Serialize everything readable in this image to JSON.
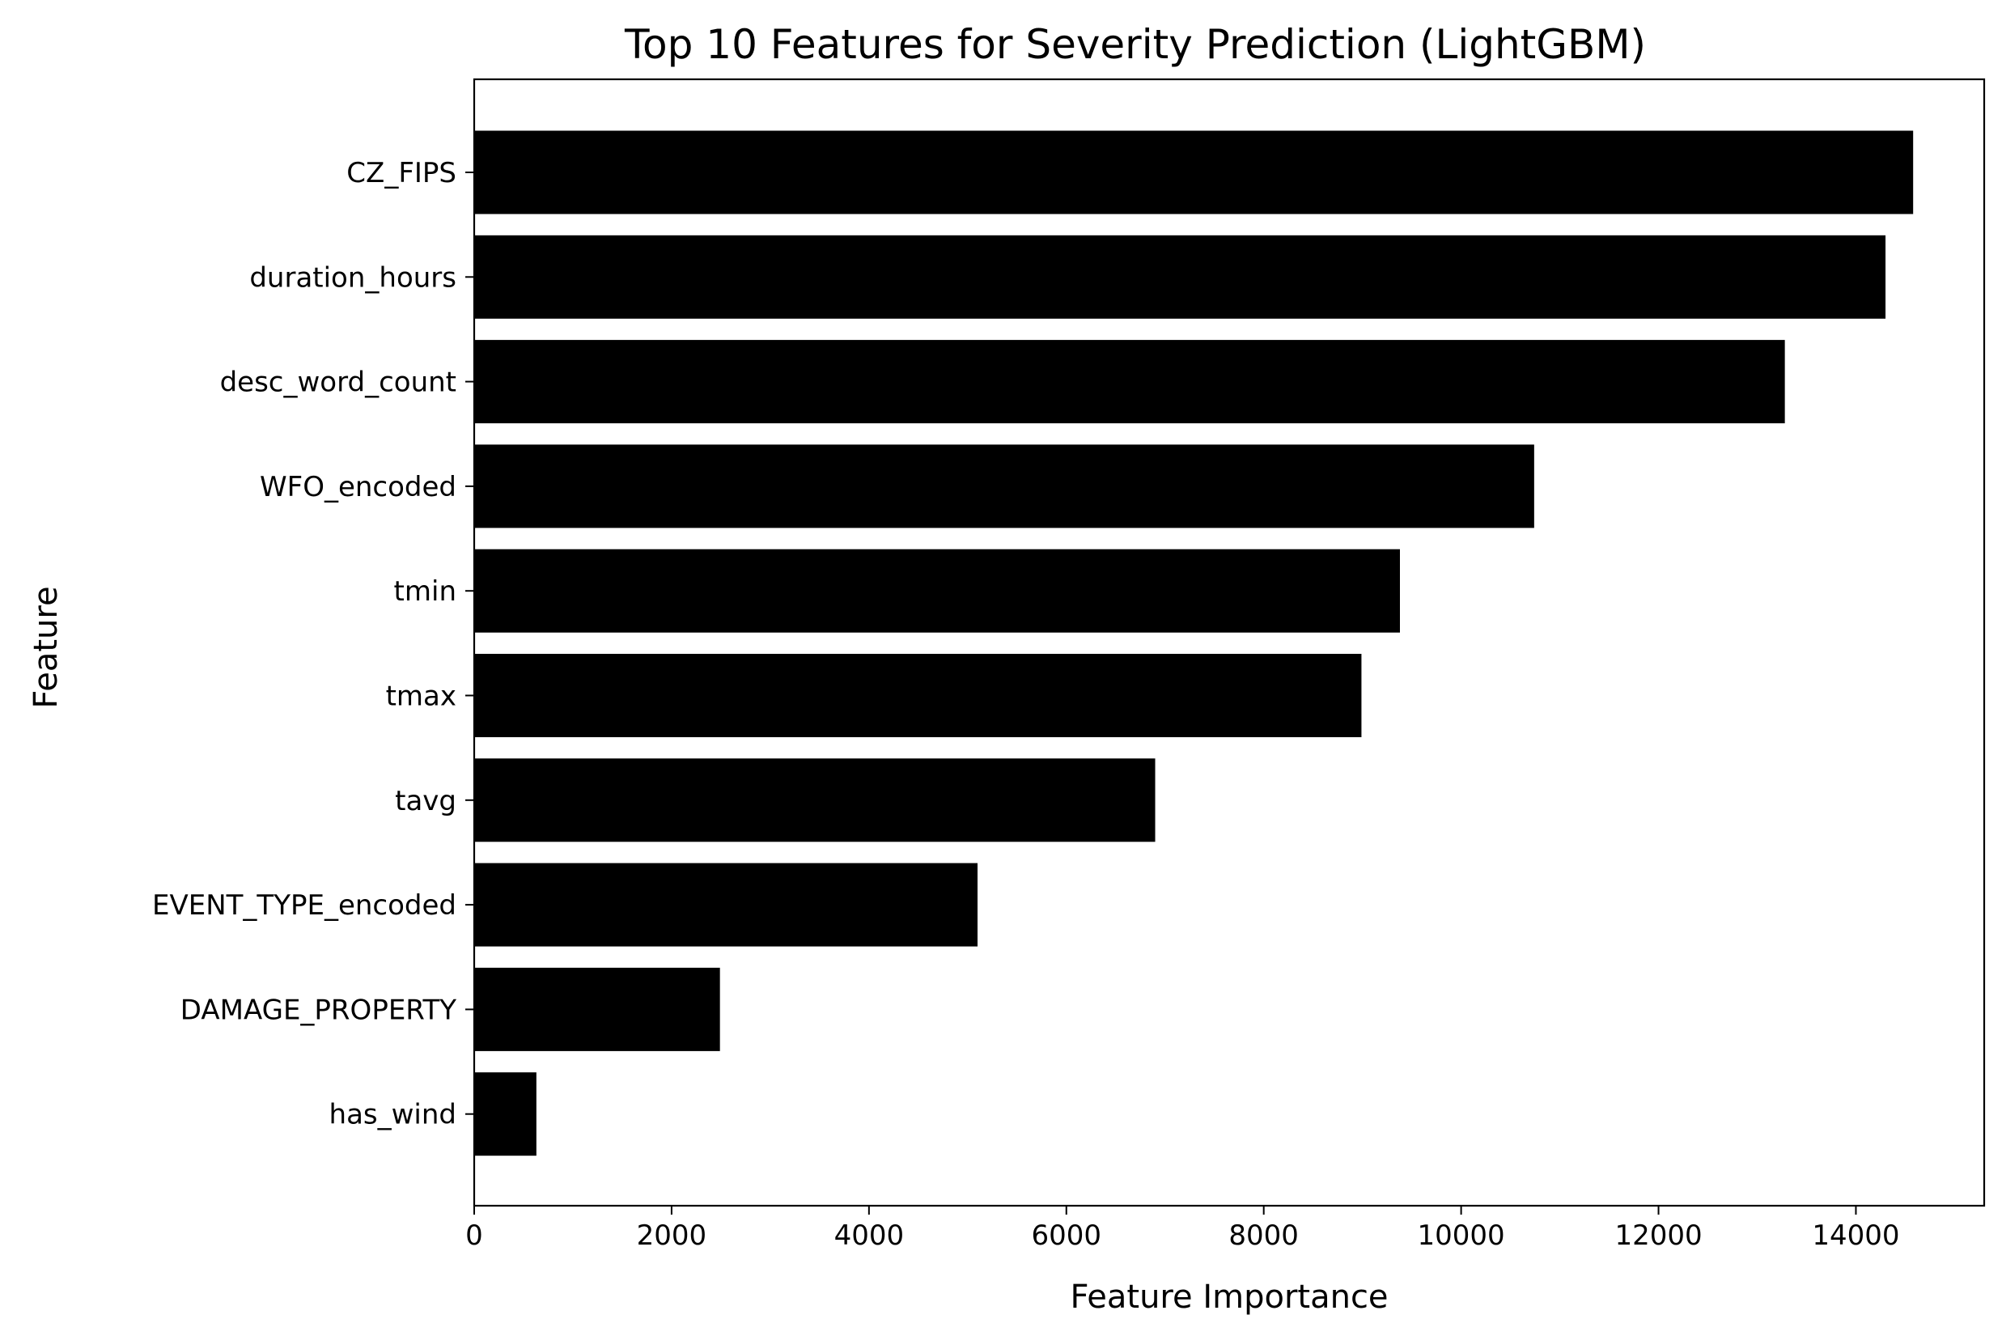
{
  "chart_data": {
    "type": "bar",
    "orientation": "horizontal",
    "title": "Top 10 Features for Severity Prediction (LightGBM)",
    "xlabel": "Feature Importance",
    "ylabel": "Feature",
    "categories": [
      "CZ_FIPS",
      "duration_hours",
      "desc_word_count",
      "WFO_encoded",
      "tmin",
      "tmax",
      "tavg",
      "EVENT_TYPE_encoded",
      "DAMAGE_PROPERTY",
      "has_wind"
    ],
    "values": [
      14580,
      14300,
      13280,
      10740,
      9380,
      8990,
      6900,
      5100,
      2490,
      630
    ],
    "xlim": [
      0,
      15300
    ],
    "xticks": [
      0,
      2000,
      4000,
      6000,
      8000,
      10000,
      12000,
      14000
    ],
    "xtick_labels": [
      "0",
      "2000",
      "4000",
      "6000",
      "8000",
      "10000",
      "12000",
      "14000"
    ],
    "bar_color": "#000000",
    "grid": false,
    "legend": "none"
  }
}
